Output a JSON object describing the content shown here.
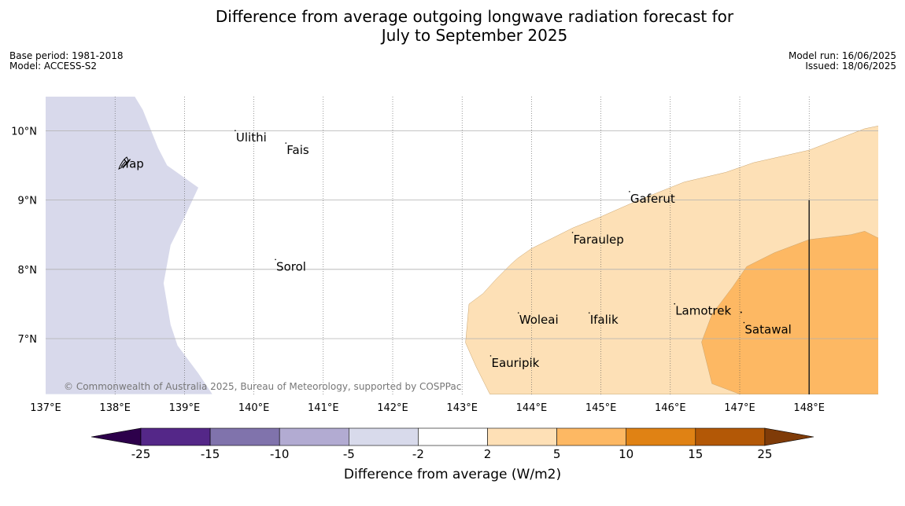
{
  "title": {
    "line1": "Difference from average outgoing longwave radiation forecast for",
    "line2": "July to September 2025"
  },
  "meta": {
    "base_period": "Base period: 1981-2018",
    "model": "Model: ACCESS-S2",
    "model_run": "Model run: 16/06/2025",
    "issued": "Issued: 18/06/2025"
  },
  "copyright": "© Commonwealth of Australia 2025, Bureau of Meteorology, supported by COSPPac",
  "map": {
    "lon_range": [
      137,
      149
    ],
    "lat_range": [
      6.2,
      10.5
    ],
    "lon_ticks": [
      {
        "value": 137,
        "label": "137°E"
      },
      {
        "value": 138,
        "label": "138°E"
      },
      {
        "value": 139,
        "label": "139°E"
      },
      {
        "value": 140,
        "label": "140°E"
      },
      {
        "value": 141,
        "label": "141°E"
      },
      {
        "value": 142,
        "label": "142°E"
      },
      {
        "value": 143,
        "label": "143°E"
      },
      {
        "value": 144,
        "label": "144°E"
      },
      {
        "value": 145,
        "label": "145°E"
      },
      {
        "value": 146,
        "label": "146°E"
      },
      {
        "value": 147,
        "label": "147°E"
      },
      {
        "value": 148,
        "label": "148°E"
      }
    ],
    "lat_ticks": [
      {
        "value": 7,
        "label": "7°N"
      },
      {
        "value": 8,
        "label": "8°N"
      },
      {
        "value": 9,
        "label": "9°N"
      },
      {
        "value": 10,
        "label": "10°N"
      }
    ],
    "places": [
      {
        "name": "Yap",
        "lon": 138.1,
        "lat": 9.52
      },
      {
        "name": "Ulithi",
        "lon": 139.72,
        "lat": 9.9
      },
      {
        "name": "Fais",
        "lon": 140.45,
        "lat": 9.72
      },
      {
        "name": "Gaferut",
        "lon": 145.4,
        "lat": 9.02
      },
      {
        "name": "Faraulep",
        "lon": 144.58,
        "lat": 8.43
      },
      {
        "name": "Sorol",
        "lon": 140.3,
        "lat": 8.04
      },
      {
        "name": "Woleai",
        "lon": 143.8,
        "lat": 7.27
      },
      {
        "name": "Ifalik",
        "lon": 144.82,
        "lat": 7.27
      },
      {
        "name": "Lamotrek",
        "lon": 146.05,
        "lat": 7.4
      },
      {
        "name": "Satawal",
        "lon": 147.05,
        "lat": 7.13
      },
      {
        "name": "Eauripik",
        "lon": 143.4,
        "lat": 6.65
      }
    ],
    "regions": [
      {
        "category": "-5 to -2",
        "color": "#d8d9eb",
        "points": [
          [
            137,
            10.5
          ],
          [
            138.28,
            10.5
          ],
          [
            138.4,
            10.3
          ],
          [
            138.62,
            9.75
          ],
          [
            138.75,
            9.5
          ],
          [
            139.2,
            9.18
          ],
          [
            139.0,
            8.75
          ],
          [
            138.8,
            8.35
          ],
          [
            138.7,
            7.8
          ],
          [
            138.8,
            7.2
          ],
          [
            138.9,
            6.9
          ],
          [
            139.2,
            6.5
          ],
          [
            139.4,
            6.2
          ],
          [
            137,
            6.2
          ]
        ]
      },
      {
        "category": "2 to 5",
        "color": "#fde0b6",
        "points": [
          [
            149,
            10.07
          ],
          [
            148.8,
            10.03
          ],
          [
            148.0,
            9.72
          ],
          [
            147.2,
            9.54
          ],
          [
            146.8,
            9.4
          ],
          [
            146.2,
            9.26
          ],
          [
            145.5,
            8.98
          ],
          [
            145.0,
            8.76
          ],
          [
            144.6,
            8.6
          ],
          [
            144.3,
            8.45
          ],
          [
            144.0,
            8.3
          ],
          [
            143.8,
            8.16
          ],
          [
            143.7,
            8.07
          ],
          [
            143.5,
            7.87
          ],
          [
            143.3,
            7.65
          ],
          [
            143.1,
            7.5
          ],
          [
            143.05,
            6.94
          ],
          [
            143.2,
            6.6
          ],
          [
            143.4,
            6.2
          ],
          [
            149,
            6.2
          ]
        ]
      },
      {
        "category": "5 to 10",
        "color": "#fdb863",
        "points": [
          [
            149,
            8.45
          ],
          [
            148.8,
            8.55
          ],
          [
            148.6,
            8.5
          ],
          [
            148.0,
            8.43
          ],
          [
            147.5,
            8.24
          ],
          [
            147.1,
            8.04
          ],
          [
            146.9,
            7.75
          ],
          [
            146.6,
            7.35
          ],
          [
            146.45,
            6.95
          ],
          [
            146.6,
            6.35
          ],
          [
            147.0,
            6.2
          ],
          [
            149,
            6.2
          ]
        ]
      }
    ],
    "vertical_line_lon": 148
  },
  "colorbar": {
    "label": "Difference from average (W/m2)",
    "under_color": "#2d004b",
    "over_color": "#7f3b08",
    "colors": [
      "#542788",
      "#8073ac",
      "#b2abd2",
      "#d8daeb",
      "#ffffff",
      "#fee0b6",
      "#fdb863",
      "#e08214",
      "#b35806"
    ],
    "ticks": [
      "-25",
      "-15",
      "-10",
      "-5",
      "-2",
      "2",
      "5",
      "10",
      "15",
      "25"
    ]
  }
}
